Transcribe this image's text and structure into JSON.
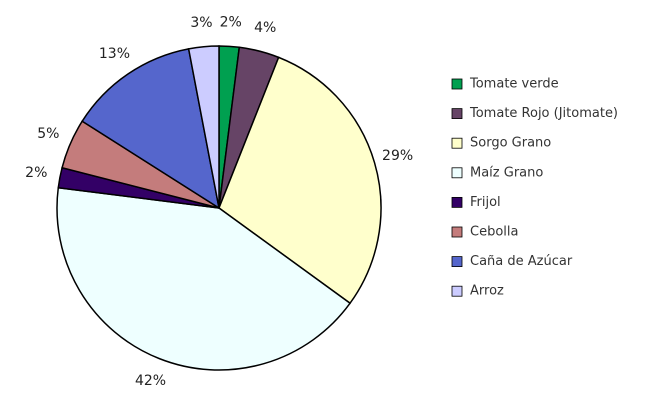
{
  "chart_data": {
    "type": "pie",
    "categories": [
      "Tomate verde",
      "Tomate Rojo (Jitomate)",
      "Sorgo Grano",
      "Maíz Grano",
      "Frijol",
      "Cebolla",
      "Caña de Azúcar",
      "Arroz"
    ],
    "values": [
      2,
      4,
      29,
      42,
      2,
      5,
      13,
      3
    ],
    "value_labels": [
      "2%",
      "4%",
      "29%",
      "42%",
      "2%",
      "5%",
      "13%",
      "3%"
    ],
    "colors": [
      "#00a050",
      "#664466",
      "#ffffcc",
      "#eeffff",
      "#330066",
      "#c47c7c",
      "#5566cc",
      "#ccccff"
    ],
    "legend": "right"
  }
}
